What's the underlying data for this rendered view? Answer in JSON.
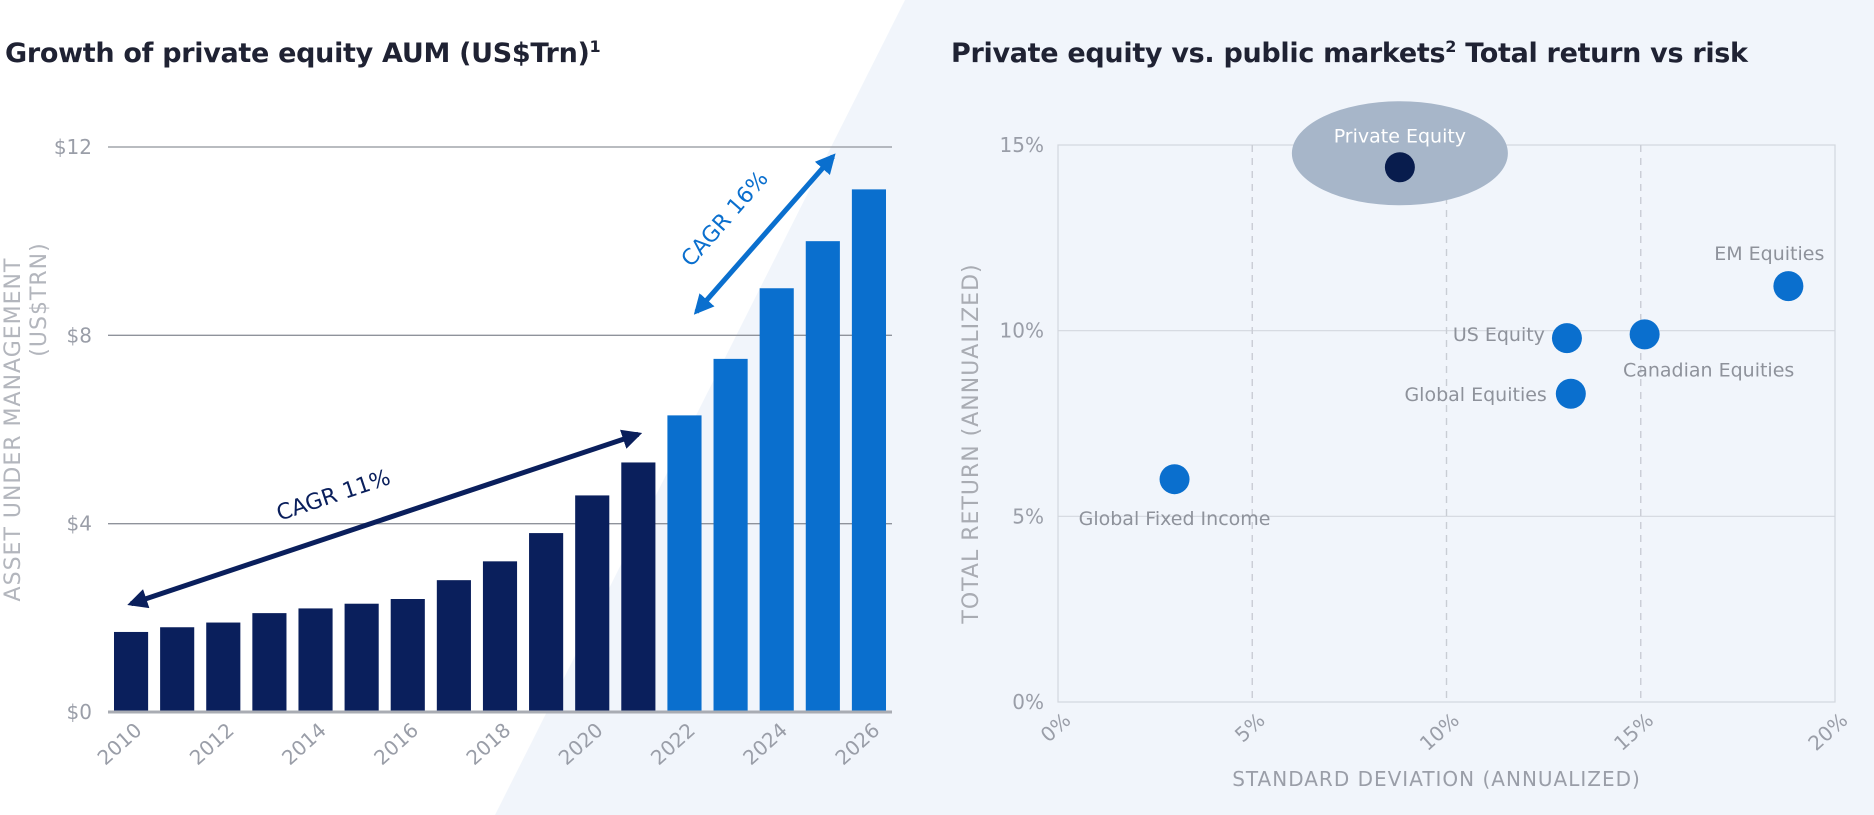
{
  "colors": {
    "dark_navy": "#0a1f5c",
    "bright_blue": "#0a6fce",
    "pe_point": "#081c4d",
    "pe_highlight": "#a7b6c9",
    "panel_bg": "#f1f5fb"
  },
  "left": {
    "title": "Growth of private equity AUM (US$Trn)",
    "title_note": "1",
    "cagr_historic": "CAGR 11%",
    "cagr_forecast": "CAGR 16%"
  },
  "right": {
    "title_part1": "Private equity vs. public markets",
    "title_note": "2",
    "title_part2": "Total return vs risk"
  },
  "chart_data": [
    {
      "type": "bar",
      "title": "Growth of private equity AUM (US$Trn)",
      "ylabel": "ASSET UNDER MANAGEMENT",
      "ylabel_sub": "(US$TRN)",
      "ylim": [
        0,
        12
      ],
      "yticks": [
        0,
        4,
        8,
        12
      ],
      "ytick_labels": [
        "$0",
        "$4",
        "$8",
        "$12"
      ],
      "grid": true,
      "categories": [
        2010,
        2011,
        2012,
        2013,
        2014,
        2015,
        2016,
        2017,
        2018,
        2019,
        2020,
        2021,
        2022,
        2023,
        2024,
        2025,
        2026
      ],
      "xtick_labels": [
        "2010",
        "2012",
        "2014",
        "2016",
        "2018",
        "2020",
        "2022",
        "2024",
        "2026"
      ],
      "values": [
        1.7,
        1.8,
        1.9,
        2.1,
        2.2,
        2.3,
        2.4,
        2.8,
        3.2,
        3.8,
        4.6,
        5.3,
        6.3,
        7.5,
        9.0,
        10.0,
        11.1
      ],
      "forecast_from_index": 12,
      "annotations": [
        {
          "text": "CAGR 11%",
          "from": [
            2010,
            2.3
          ],
          "to": [
            2021,
            5.9
          ],
          "color": "#0a1f5c"
        },
        {
          "text": "CAGR 16%",
          "from": [
            2022,
            8.5
          ],
          "to": [
            2026,
            11.8
          ],
          "color": "#0a6fce"
        }
      ]
    },
    {
      "type": "scatter",
      "title": "Private equity vs. public markets Total return vs risk",
      "xlabel": "STANDARD DEVIATION (ANNUALIZED)",
      "ylabel": "TOTAL RETURN (ANNUALIZED)",
      "xlim": [
        0,
        20
      ],
      "ylim": [
        0,
        15
      ],
      "xticks": [
        0,
        5,
        10,
        15,
        20
      ],
      "xtick_labels": [
        "0%",
        "5%",
        "10%",
        "15%",
        "20%"
      ],
      "yticks": [
        0,
        5,
        10,
        15
      ],
      "ytick_labels": [
        "0%",
        "5%",
        "10%",
        "15%"
      ],
      "grid": true,
      "points": [
        {
          "name": "Private Equity",
          "x": 8.8,
          "y": 14.4,
          "highlight": true
        },
        {
          "name": "EM Equities",
          "x": 18.8,
          "y": 11.2
        },
        {
          "name": "US Equity",
          "x": 13.1,
          "y": 9.8
        },
        {
          "name": "Canadian Equities",
          "x": 15.1,
          "y": 9.9
        },
        {
          "name": "Global Equities",
          "x": 13.2,
          "y": 8.3
        },
        {
          "name": "Global Fixed Income",
          "x": 3.0,
          "y": 6.0
        }
      ]
    }
  ]
}
